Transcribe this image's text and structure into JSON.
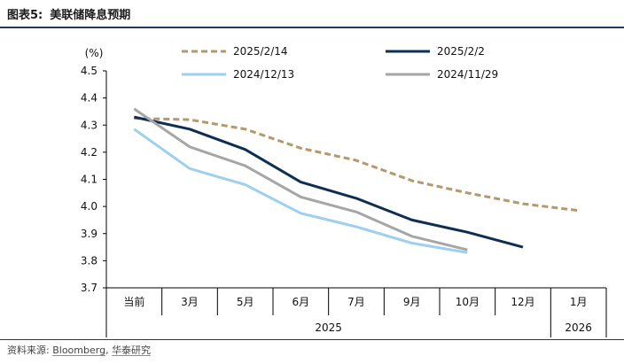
{
  "figure": {
    "label": "图表5:",
    "title": "美联储降息预期"
  },
  "source": {
    "prefix": "资料来源:",
    "items": [
      "Bloomberg",
      "华泰研究"
    ],
    "separator": ","
  },
  "chart_data": {
    "type": "line",
    "unit_label": "(%)",
    "ylim": [
      3.7,
      4.5
    ],
    "yticks": [
      "3.7",
      "3.8",
      "3.9",
      "4.0",
      "4.1",
      "4.2",
      "4.3",
      "4.4",
      "4.5"
    ],
    "categories": [
      "当前",
      "3月",
      "5月",
      "6月",
      "7月",
      "9月",
      "10月",
      "12月",
      "1月"
    ],
    "year_groups": [
      {
        "label": "2025",
        "span": 8
      },
      {
        "label": "2026",
        "span": 1
      }
    ],
    "grid": false,
    "legend_position": "top",
    "series": [
      {
        "name": "2025/2/14",
        "color": "#b5996a",
        "dash": true,
        "values": [
          4.325,
          4.32,
          4.285,
          4.215,
          4.17,
          4.095,
          4.05,
          4.01,
          3.985
        ]
      },
      {
        "name": "2025/2/2",
        "color": "#0d2f52",
        "dash": false,
        "values": [
          4.33,
          4.285,
          4.21,
          4.09,
          4.03,
          3.95,
          3.905,
          3.85,
          null
        ]
      },
      {
        "name": "2024/12/13",
        "color": "#9dcfee",
        "dash": false,
        "values": [
          4.285,
          4.14,
          4.08,
          3.975,
          3.925,
          3.865,
          3.83,
          null,
          null
        ]
      },
      {
        "name": "2024/11/29",
        "color": "#a6a6a6",
        "dash": false,
        "values": [
          4.36,
          4.22,
          4.15,
          4.035,
          3.98,
          3.89,
          3.84,
          null,
          null
        ]
      }
    ]
  }
}
